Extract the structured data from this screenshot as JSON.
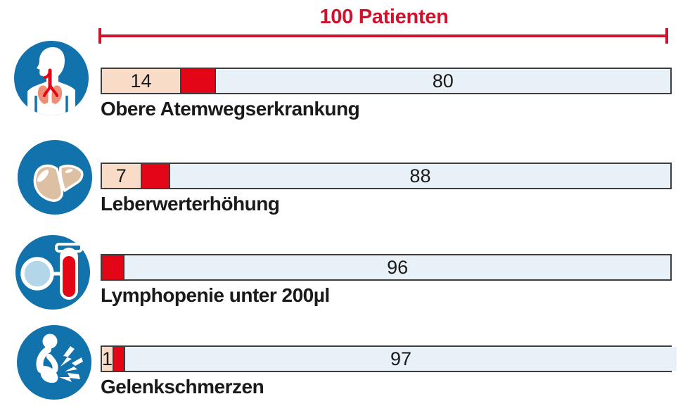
{
  "palette": {
    "accent_red": "#d1122c",
    "segment_red": "#e30617",
    "segment_pink": "#f9dcc8",
    "segment_lightblue": "#e9f1f8",
    "bar_border": "#3d3d3d",
    "icon_blue": "#1272ac",
    "liver_tan": "#ddbfa4",
    "lung_salmon": "#ef8e76",
    "lens_blue": "#b3d7e9",
    "label_black": "#1a1a1a"
  },
  "chart_data": {
    "type": "bar",
    "orientation": "horizontal_stacked",
    "title": "100 Patienten",
    "total": 100,
    "legend": "none",
    "bracket": "red measuring bracket spanning full bar width = 100 Patienten",
    "rows": [
      {
        "label": "Obere Atemwegserkrankung",
        "icon": "airways-icon",
        "segments": [
          {
            "value": 14,
            "label": "14",
            "color_key": "segment_pink"
          },
          {
            "value": 6,
            "label": "",
            "color_key": "segment_red"
          },
          {
            "value": 80,
            "label": "80",
            "color_key": "segment_lightblue"
          }
        ]
      },
      {
        "label": "Leberwerterhöhung",
        "icon": "liver-icon",
        "segments": [
          {
            "value": 7,
            "label": "7",
            "color_key": "segment_pink"
          },
          {
            "value": 5,
            "label": "",
            "color_key": "segment_red"
          },
          {
            "value": 88,
            "label": "88",
            "color_key": "segment_lightblue"
          }
        ]
      },
      {
        "label": "Lymphopenie unter 200µl",
        "icon": "blood-test-icon",
        "segments": [
          {
            "value": 4,
            "label": "",
            "color_key": "segment_red"
          },
          {
            "value": 96,
            "label": "96",
            "color_key": "segment_lightblue"
          }
        ]
      },
      {
        "label": "Gelenkschmerzen",
        "icon": "joint-pain-icon",
        "segments": [
          {
            "value": 1,
            "label": "1",
            "color_key": "segment_pink"
          },
          {
            "value": 2,
            "label": "",
            "color_key": "segment_red"
          },
          {
            "value": 97,
            "label": "97",
            "color_key": "segment_lightblue"
          }
        ]
      }
    ]
  }
}
